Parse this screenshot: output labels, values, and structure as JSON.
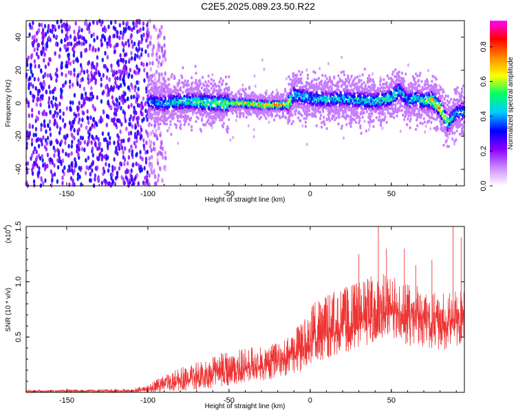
{
  "title": "C2E5.2025.089.23.50.R22",
  "chart_data": [
    {
      "type": "heatmap",
      "xlabel": "Height of straight line (km)",
      "ylabel": "Frequency (Hz)",
      "xlim": [
        -175,
        95
      ],
      "ylim": [
        -50,
        50
      ],
      "xticks": [
        -150,
        -100,
        -50,
        0,
        50
      ],
      "yticks": [
        -40,
        -20,
        0,
        20,
        40
      ],
      "colorbar": {
        "label": "Normalized spectral amplitude",
        "range": [
          0,
          0.95
        ],
        "ticks": [
          "0.0",
          "0.2",
          "0.4",
          "0.6",
          "0.8"
        ],
        "colormap": [
          "#ffffff",
          "#cc88ff",
          "#8800ff",
          "#0000ff",
          "#00ccff",
          "#00ff66",
          "#ffff00",
          "#ff8800",
          "#ff0000",
          "#ff00ff"
        ]
      },
      "noise_region_km": [
        -175,
        -95
      ],
      "ridge": {
        "x": [
          -100,
          -90,
          -80,
          -70,
          -60,
          -50,
          -40,
          -30,
          -20,
          -14,
          -10,
          0,
          10,
          20,
          30,
          40,
          50,
          55,
          60,
          65,
          70,
          75,
          80,
          85,
          90,
          95
        ],
        "center_hz": [
          1,
          0,
          1,
          1,
          0,
          0,
          0,
          -1,
          -1,
          -1,
          5,
          3,
          2,
          3,
          2,
          1,
          3,
          8,
          2,
          3,
          1,
          2,
          -3,
          -12,
          -6,
          -5
        ],
        "peak_amplitude": [
          0.45,
          0.5,
          0.55,
          0.6,
          0.65,
          0.75,
          0.8,
          0.85,
          0.9,
          0.85,
          0.55,
          0.5,
          0.55,
          0.5,
          0.55,
          0.55,
          0.6,
          0.55,
          0.5,
          0.55,
          0.6,
          0.8,
          0.85,
          0.6,
          0.5,
          0.5
        ]
      }
    },
    {
      "type": "line",
      "xlabel": "Height of straight line (km)",
      "ylabel": "SNR (10 * v/v)",
      "exponent_label": "(x10",
      "exponent_power": "4",
      "exponent_close": ")",
      "xlim": [
        -175,
        95
      ],
      "ylim": [
        0,
        1.5
      ],
      "xticks": [
        -150,
        -100,
        -50,
        0,
        50
      ],
      "yticks": [
        "0.5",
        "1.0",
        "1.5"
      ],
      "color": "#ee3333",
      "series": [
        {
          "envelope_x": [
            -175,
            -110,
            -100,
            -90,
            -80,
            -70,
            -60,
            -50,
            -40,
            -30,
            -20,
            -10,
            0,
            10,
            20,
            30,
            40,
            50,
            60,
            70,
            80,
            90,
            95
          ],
          "mean": [
            0.01,
            0.01,
            0.03,
            0.07,
            0.1,
            0.13,
            0.16,
            0.18,
            0.21,
            0.24,
            0.28,
            0.33,
            0.45,
            0.52,
            0.58,
            0.62,
            0.68,
            0.7,
            0.68,
            0.66,
            0.62,
            0.64,
            0.7
          ],
          "upper": [
            0.02,
            0.03,
            0.08,
            0.15,
            0.22,
            0.28,
            0.33,
            0.38,
            0.4,
            0.42,
            0.45,
            0.55,
            0.8,
            0.9,
            0.95,
            1.0,
            1.1,
            1.05,
            1.0,
            0.95,
            0.9,
            0.92,
            1.0
          ],
          "lower": [
            0.0,
            0.0,
            0.0,
            0.0,
            0.01,
            0.02,
            0.04,
            0.06,
            0.08,
            0.1,
            0.12,
            0.16,
            0.22,
            0.3,
            0.35,
            0.4,
            0.45,
            0.45,
            0.42,
            0.4,
            0.38,
            0.4,
            0.45
          ],
          "spikes": [
            [
              42,
              1.5
            ],
            [
              88,
              1.5
            ],
            [
              93,
              1.4
            ],
            [
              47,
              1.3
            ],
            [
              58,
              1.3
            ],
            [
              75,
              1.2
            ],
            [
              30,
              1.25
            ],
            [
              65,
              1.15
            ]
          ]
        }
      ]
    }
  ]
}
